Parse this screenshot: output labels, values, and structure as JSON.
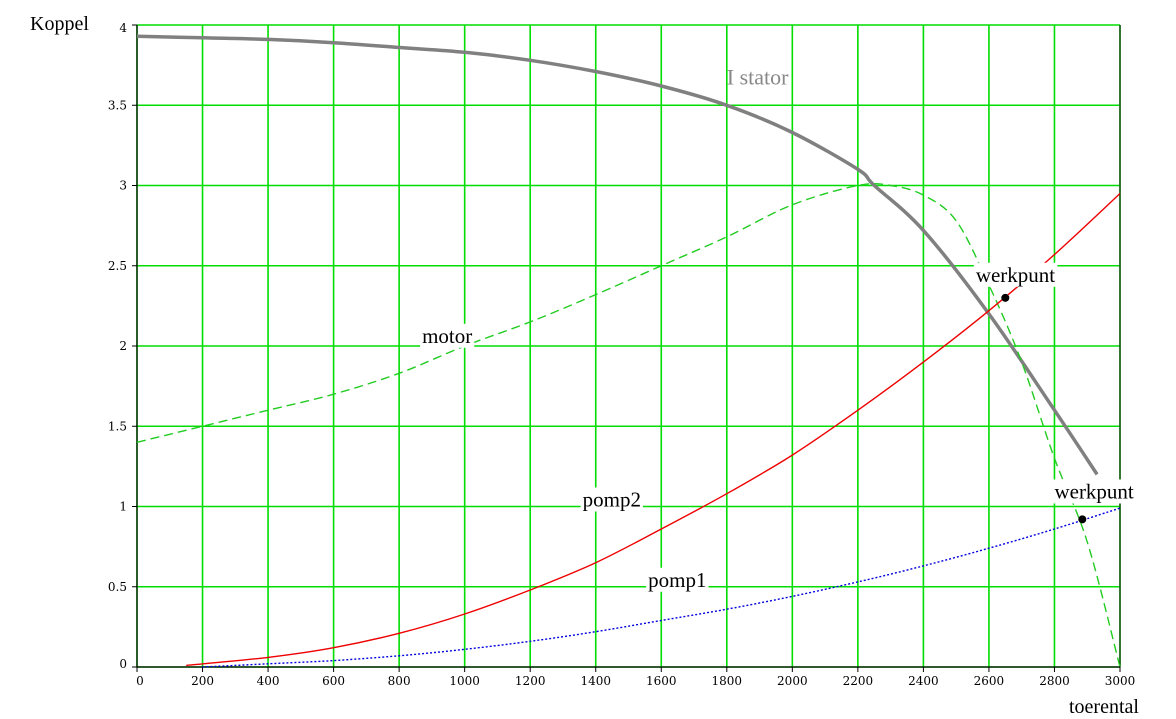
{
  "chart_data": {
    "type": "line",
    "xlabel": "toerental",
    "ylabel": "Koppel",
    "xlim": [
      0,
      3000
    ],
    "ylim": [
      0,
      4
    ],
    "xticks": [
      0,
      200,
      400,
      600,
      800,
      1000,
      1200,
      1400,
      1600,
      1800,
      2000,
      2200,
      2400,
      2600,
      2800,
      3000
    ],
    "yticks": [
      0,
      0.5,
      1,
      1.5,
      2,
      2.5,
      3,
      3.5,
      4
    ],
    "xtick_labels": [
      "0",
      "200",
      "400",
      "600",
      "800",
      "1000",
      "1200",
      "1400",
      "1600",
      "1800",
      "2000",
      "2200",
      "2400",
      "2600",
      "2800",
      "3000"
    ],
    "ytick_labels": [
      "0",
      "0.5",
      "1",
      "1.5",
      "2",
      "2.5",
      "3",
      "3.5",
      "4"
    ],
    "grid": true,
    "grid_color": "#00dd00",
    "series": [
      {
        "name": "I stator",
        "color": "#808080",
        "style": "solid",
        "x": [
          0,
          200,
          400,
          600,
          800,
          1000,
          1200,
          1400,
          1600,
          1800,
          2000,
          2200,
          2250,
          2400,
          2600,
          2800,
          2930
        ],
        "y": [
          3.93,
          3.92,
          3.91,
          3.89,
          3.86,
          3.83,
          3.78,
          3.71,
          3.62,
          3.5,
          3.33,
          3.1,
          3.0,
          2.72,
          2.2,
          1.6,
          1.2
        ]
      },
      {
        "name": "motor",
        "color": "#22cc22",
        "style": "dashed",
        "x": [
          0,
          200,
          400,
          600,
          800,
          1000,
          1200,
          1400,
          1600,
          1800,
          2000,
          2200,
          2300,
          2400,
          2500,
          2600,
          2700,
          2800,
          2900,
          3000
        ],
        "y": [
          1.4,
          1.5,
          1.6,
          1.7,
          1.83,
          2.0,
          2.15,
          2.32,
          2.5,
          2.68,
          2.88,
          3.0,
          3.0,
          2.94,
          2.78,
          2.38,
          1.9,
          1.3,
          0.78,
          0.0
        ]
      },
      {
        "name": "pomp2",
        "color": "#ee0000",
        "style": "solid",
        "x": [
          150,
          400,
          600,
          800,
          1000,
          1200,
          1400,
          1600,
          1800,
          2000,
          2200,
          2400,
          2600,
          2800,
          3000
        ],
        "y": [
          0.01,
          0.06,
          0.12,
          0.21,
          0.33,
          0.48,
          0.65,
          0.86,
          1.08,
          1.32,
          1.6,
          1.9,
          2.22,
          2.57,
          2.95
        ]
      },
      {
        "name": "pomp1",
        "color": "#0000dd",
        "style": "dotted",
        "x": [
          200,
          400,
          600,
          800,
          1000,
          1200,
          1400,
          1600,
          1800,
          2000,
          2200,
          2400,
          2600,
          2800,
          3000
        ],
        "y": [
          0.0,
          0.02,
          0.04,
          0.07,
          0.11,
          0.16,
          0.22,
          0.29,
          0.36,
          0.44,
          0.53,
          0.63,
          0.74,
          0.86,
          0.99
        ]
      }
    ],
    "points": [
      {
        "label": "werkpunt",
        "x": 2650,
        "y": 2.3
      },
      {
        "label": "werkpunt",
        "x": 2885,
        "y": 0.92
      }
    ],
    "annotations": [
      {
        "text": "I stator",
        "x": 1800,
        "y": 3.63
      },
      {
        "text": "motor",
        "x": 870,
        "y": 2.02
      },
      {
        "text": "pomp2",
        "x": 1360,
        "y": 1.0
      },
      {
        "text": "pomp1",
        "x": 1560,
        "y": 0.5
      },
      {
        "text": "werkpunt",
        "x": 2560,
        "y": 2.4
      },
      {
        "text": "werkpunt",
        "x": 2800,
        "y": 1.05
      }
    ]
  }
}
